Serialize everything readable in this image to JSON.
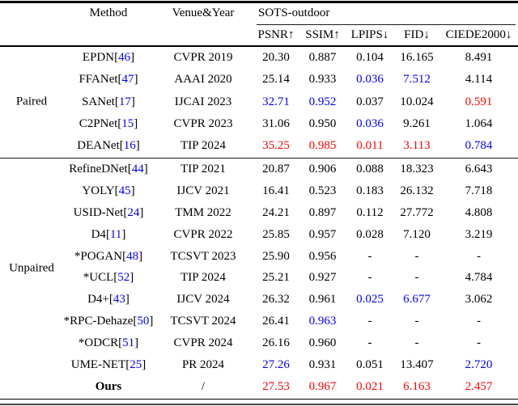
{
  "page": {
    "background": "#ffffff"
  },
  "colors": {
    "best_red": "#fb0400",
    "second_blue": "#0200fb",
    "citation_blue": "#0200fb",
    "text": "#000000"
  },
  "header": {
    "method": "Method",
    "venue": "Venue&Year",
    "dataset": "SOTS-outdoor",
    "metrics": [
      "PSNR↑",
      "SSIM↑",
      "LPIPS↓",
      "FID↓",
      "CIEDE2000↓"
    ]
  },
  "sections": [
    {
      "label": "Paired",
      "rows": [
        {
          "method": "EPDN",
          "cite": "46",
          "venue": "CVPR 2019",
          "values": [
            [
              "20.30",
              ""
            ],
            [
              "0.887",
              ""
            ],
            [
              "0.104",
              ""
            ],
            [
              "16.165",
              ""
            ],
            [
              "8.491",
              ""
            ]
          ]
        },
        {
          "method": "FFANet",
          "cite": "47",
          "venue": "AAAI 2020",
          "values": [
            [
              "25.14",
              ""
            ],
            [
              "0.933",
              ""
            ],
            [
              "0.036",
              "second"
            ],
            [
              "7.512",
              "second"
            ],
            [
              "4.114",
              ""
            ]
          ]
        },
        {
          "method": "SANet",
          "cite": "17",
          "venue": "IJCAI 2023",
          "values": [
            [
              "32.71",
              "second"
            ],
            [
              "0.952",
              "second"
            ],
            [
              "0.037",
              ""
            ],
            [
              "10.024",
              ""
            ],
            [
              "0.591",
              "best"
            ]
          ]
        },
        {
          "method": "C2PNet",
          "cite": "15",
          "venue": "CVPR 2023",
          "values": [
            [
              "31.06",
              ""
            ],
            [
              "0.950",
              ""
            ],
            [
              "0.036",
              "second"
            ],
            [
              "9.261",
              ""
            ],
            [
              "1.064",
              ""
            ]
          ]
        },
        {
          "method": "DEANet",
          "cite": "16",
          "venue": "TIP 2024",
          "values": [
            [
              "35.25",
              "best"
            ],
            [
              "0.985",
              "best"
            ],
            [
              "0.011",
              "best"
            ],
            [
              "3.113",
              "best"
            ],
            [
              "0.784",
              "second"
            ]
          ]
        }
      ]
    },
    {
      "label": "Unpaired",
      "rows": [
        {
          "method": "RefineDNet",
          "cite": "44",
          "venue": "TIP 2021",
          "values": [
            [
              "20.87",
              ""
            ],
            [
              "0.906",
              ""
            ],
            [
              "0.088",
              ""
            ],
            [
              "18.323",
              ""
            ],
            [
              "6.643",
              ""
            ]
          ]
        },
        {
          "method": "YOLY",
          "cite": "45",
          "venue": "IJCV 2021",
          "values": [
            [
              "16.41",
              ""
            ],
            [
              "0.523",
              ""
            ],
            [
              "0.183",
              ""
            ],
            [
              "26.132",
              ""
            ],
            [
              "7.718",
              ""
            ]
          ]
        },
        {
          "method": "USID-Net",
          "cite": "24",
          "venue": "TMM 2022",
          "values": [
            [
              "24.21",
              ""
            ],
            [
              "0.897",
              ""
            ],
            [
              "0.112",
              ""
            ],
            [
              "27.772",
              ""
            ],
            [
              "4.808",
              ""
            ]
          ]
        },
        {
          "method": "D4",
          "cite": "11",
          "venue": "CVPR 2022",
          "values": [
            [
              "25.85",
              ""
            ],
            [
              "0.957",
              ""
            ],
            [
              "0.028",
              ""
            ],
            [
              "7.120",
              ""
            ],
            [
              "3.219",
              ""
            ]
          ]
        },
        {
          "method": "*POGAN",
          "cite": "48",
          "venue": "TCSVT 2023",
          "values": [
            [
              "25.90",
              ""
            ],
            [
              "0.956",
              ""
            ],
            [
              "-",
              ""
            ],
            [
              "-",
              ""
            ],
            [
              "-",
              ""
            ]
          ]
        },
        {
          "method": "*UCL",
          "cite": "52",
          "venue": "TIP 2024",
          "values": [
            [
              "25.21",
              ""
            ],
            [
              "0.927",
              ""
            ],
            [
              "-",
              ""
            ],
            [
              "-",
              ""
            ],
            [
              "4.784",
              ""
            ]
          ]
        },
        {
          "method": "D4+",
          "cite": "43",
          "venue": "IJCV 2024",
          "values": [
            [
              "26.32",
              ""
            ],
            [
              "0.961",
              ""
            ],
            [
              "0.025",
              "second"
            ],
            [
              "6.677",
              "second"
            ],
            [
              "3.062",
              ""
            ]
          ]
        },
        {
          "method": "*RPC-Dehaze",
          "cite": "50",
          "venue": "TCSVT 2024",
          "values": [
            [
              "26.41",
              ""
            ],
            [
              "0.963",
              "second"
            ],
            [
              "-",
              ""
            ],
            [
              "-",
              ""
            ],
            [
              "-",
              ""
            ]
          ]
        },
        {
          "method": "*ODCR",
          "cite": "51",
          "venue": "CVPR 2024",
          "values": [
            [
              "26.16",
              ""
            ],
            [
              "0.960",
              ""
            ],
            [
              "-",
              ""
            ],
            [
              "-",
              ""
            ],
            [
              "-",
              ""
            ]
          ]
        },
        {
          "method": "UME-NET",
          "cite": "25",
          "venue": "PR 2024",
          "values": [
            [
              "27.26",
              "second"
            ],
            [
              "0.931",
              ""
            ],
            [
              "0.051",
              ""
            ],
            [
              "13.407",
              ""
            ],
            [
              "2.720",
              "second"
            ]
          ]
        },
        {
          "method": "Ours",
          "cite": null,
          "bold": true,
          "venue": "/",
          "values": [
            [
              "27.53",
              "best"
            ],
            [
              "0.967",
              "best"
            ],
            [
              "0.021",
              "best"
            ],
            [
              "6.163",
              "best"
            ],
            [
              "2.457",
              "best"
            ]
          ]
        }
      ]
    }
  ]
}
